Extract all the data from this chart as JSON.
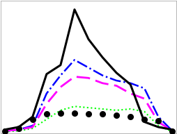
{
  "x": [
    0,
    1,
    2,
    3,
    4,
    5,
    6,
    7,
    8,
    9,
    10,
    11,
    12
  ],
  "black_line": [
    0.02,
    0.04,
    0.12,
    0.45,
    0.52,
    0.95,
    0.72,
    0.58,
    0.46,
    0.37,
    0.08,
    0.04,
    0.02
  ],
  "blue_dashdot": [
    0.01,
    0.02,
    0.05,
    0.3,
    0.44,
    0.56,
    0.5,
    0.44,
    0.4,
    0.38,
    0.34,
    0.12,
    0.01
  ],
  "magenta_dash": [
    0.01,
    0.02,
    0.04,
    0.22,
    0.35,
    0.43,
    0.42,
    0.38,
    0.36,
    0.3,
    0.26,
    0.08,
    0.01
  ],
  "green_dot": [
    0.005,
    0.01,
    0.03,
    0.1,
    0.17,
    0.2,
    0.19,
    0.18,
    0.17,
    0.18,
    0.16,
    0.05,
    0.005
  ],
  "black_dots_y": [
    0.01,
    0.03,
    0.1,
    0.14,
    0.15,
    0.15,
    0.14,
    0.14,
    0.13,
    0.12,
    0.1,
    0.09,
    0.01
  ],
  "background_color": "#ffffff",
  "grid_color": "#d8d8d8",
  "xlim": [
    -0.3,
    12.3
  ],
  "ylim": [
    -0.01,
    1.02
  ],
  "black_lw": 2.2,
  "blue_lw": 1.8,
  "magenta_lw": 2.0,
  "green_lw": 1.5,
  "dot_size": 5.5
}
